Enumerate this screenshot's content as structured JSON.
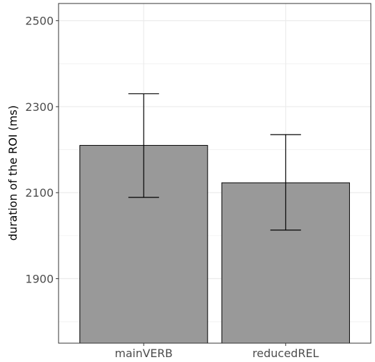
{
  "chart_data": {
    "type": "bar",
    "title": "",
    "xlabel": "",
    "ylabel": "duration of the ROI (ms)",
    "categories": [
      "mainVERB",
      "reducedREL"
    ],
    "values": [
      2210,
      2123
    ],
    "error_low": [
      2089,
      2013
    ],
    "error_high": [
      2330,
      2235
    ],
    "ylim": [
      1750,
      2540
    ],
    "yticks": [
      1900,
      2100,
      2300,
      2500
    ],
    "ytick_labels": [
      "1900",
      "2100",
      "2300",
      "2500"
    ],
    "grid": true,
    "legend": "none",
    "colors": {
      "bar_fill": "#999999",
      "bar_stroke": "#000000",
      "error_bar": "#000000",
      "grid": "#ebebeb",
      "panel_border": "#333333"
    }
  }
}
